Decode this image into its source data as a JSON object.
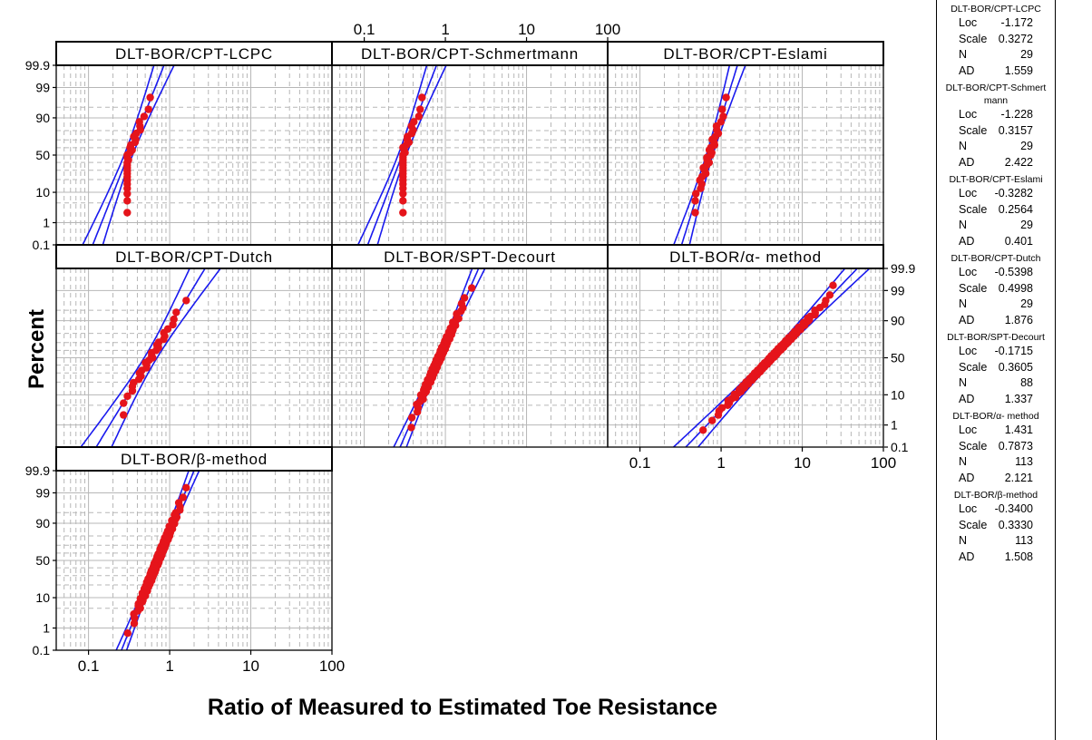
{
  "chart_data": {
    "type": "scatter",
    "figure": "Lognormal probability plots with 95% confidence bands",
    "xlabel": "Ratio of Measured to Estimated Toe Resistance",
    "ylabel": "Percent",
    "x_scale": "log",
    "x_ticks": [
      "0.1",
      "1",
      "10",
      "100"
    ],
    "y_ticks": [
      "0.1",
      "1",
      "10",
      "50",
      "90",
      "99",
      "99.9"
    ],
    "xlim": [
      0.04,
      100
    ],
    "ylim_percent": [
      0.1,
      99.9
    ],
    "grid": true,
    "colors": {
      "points": "#e5141b",
      "fit_line": "#1a1aee",
      "grid": "#b7b7b7"
    },
    "panels": [
      {
        "id": "lcpc",
        "title": "DLT-BOR/CPT-LCPC",
        "legend_title": "DLT-BOR/CPT-LCPC",
        "loc": -1.172,
        "scale": 0.3272,
        "n": 29,
        "ad": 1.559,
        "points_min": 0.3,
        "points_max": 0.68
      },
      {
        "id": "schm",
        "title": "DLT-BOR/CPT-Schmertmann",
        "legend_title": "DLT-BOR/CPT-Schmertmann",
        "loc": -1.228,
        "scale": 0.3157,
        "n": 29,
        "ad": 2.422,
        "points_min": 0.3,
        "points_max": 0.9
      },
      {
        "id": "eslami",
        "title": "DLT-BOR/CPT-Eslami",
        "legend_title": "DLT-BOR/CPT-Eslami",
        "loc": -0.3282,
        "scale": 0.2564,
        "n": 29,
        "ad": 0.401,
        "points_min": 0.48,
        "points_max": 1.5
      },
      {
        "id": "dutch",
        "title": "DLT-BOR/CPT-Dutch",
        "legend_title": "DLT-BOR/CPT-Dutch",
        "loc": -0.5398,
        "scale": 0.4998,
        "n": 29,
        "ad": 1.876,
        "points_min": 0.27,
        "points_max": 3.6
      },
      {
        "id": "decourt",
        "title": "DLT-BOR/SPT-Decourt",
        "legend_title": "DLT-BOR/SPT-Decourt",
        "loc": -0.1715,
        "scale": 0.3605,
        "n": 88,
        "ad": 1.337,
        "points_min": 0.38,
        "points_max": 3.0
      },
      {
        "id": "alpha",
        "title": "DLT-BOR/α- method",
        "legend_title": "DLT-BOR/α- method",
        "loc": 1.431,
        "scale": 0.7873,
        "n": 113,
        "ad": 2.121,
        "points_min": 0.6,
        "points_max": 24
      },
      {
        "id": "beta",
        "title": "DLT-BOR/β-method",
        "legend_title": "DLT-BOR/β-method",
        "loc": -0.34,
        "scale": 0.333,
        "n": 113,
        "ad": 1.508,
        "points_min": 0.25,
        "points_max": 1.6
      }
    ]
  },
  "legend_labels": {
    "loc": "Loc",
    "scale": "Scale",
    "n": "N",
    "ad": "AD"
  },
  "legend_values": [
    {
      "title": "DLT-BOR/CPT-LCPC",
      "loc": "-1.172",
      "scale": "0.3272",
      "n": "29",
      "ad": "1.559"
    },
    {
      "title": "DLT-BOR/CPT-Schmert mann",
      "loc": "-1.228",
      "scale": "0.3157",
      "n": "29",
      "ad": "2.422"
    },
    {
      "title": "DLT-BOR/CPT-Eslami",
      "loc": "-0.3282",
      "scale": "0.2564",
      "n": "29",
      "ad": "0.401"
    },
    {
      "title": "DLT-BOR/CPT-Dutch",
      "loc": "-0.5398",
      "scale": "0.4998",
      "n": "29",
      "ad": "1.876"
    },
    {
      "title": "DLT-BOR/SPT-Decourt",
      "loc": "-0.1715",
      "scale": "0.3605",
      "n": "88",
      "ad": "1.337"
    },
    {
      "title": "DLT-BOR/α- method",
      "loc": "1.431",
      "scale": "0.7873",
      "n": "113",
      "ad": "2.121"
    },
    {
      "title": "DLT-BOR/β-method",
      "loc": "-0.3400",
      "scale": "0.3330",
      "n": "113",
      "ad": "1.508"
    }
  ]
}
